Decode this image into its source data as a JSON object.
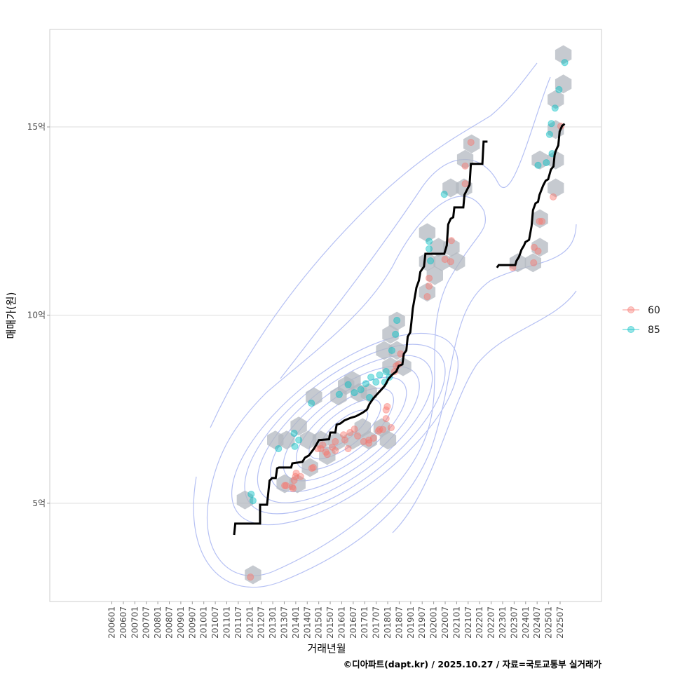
{
  "chart_data": {
    "type": "scatter",
    "xlabel": "거래년월",
    "ylabel": "매매가(원)",
    "caption": "©디아파트(dapt.kr) / 2025.10.27 / 자료=국토교통부 실거래가",
    "xlim": [
      2003.3,
      2027.3
    ],
    "ylim": [
      2.39,
      17.59
    ],
    "y_ticks": [
      {
        "value": 5,
        "label": "5억"
      },
      {
        "value": 10,
        "label": "10억"
      },
      {
        "value": 15,
        "label": "15억"
      }
    ],
    "x_ticks": [
      "200601",
      "200607",
      "200701",
      "200707",
      "200801",
      "200807",
      "200901",
      "200907",
      "201001",
      "201007",
      "201101",
      "201107",
      "201201",
      "201207",
      "201301",
      "201307",
      "201401",
      "201407",
      "201501",
      "201507",
      "201601",
      "201607",
      "201701",
      "201707",
      "201801",
      "201807",
      "201901",
      "201907",
      "202001",
      "202007",
      "202101",
      "202107",
      "202201",
      "202207",
      "202301",
      "202307",
      "202401",
      "202407",
      "202501",
      "202507"
    ],
    "grid": "horizontal major",
    "legend": {
      "placement": "right",
      "entries": [
        {
          "label": "60",
          "color": "#F8766D"
        },
        {
          "label": "85",
          "color": "#00BFC4"
        }
      ]
    },
    "colors": {
      "s60": "#F8766D",
      "s85": "#00BFC4",
      "hex": "#b3b8c0",
      "contour": "#9aa8f0",
      "median": "#000000"
    },
    "median_line": [
      [
        [
          2011.32,
          4.16
        ],
        [
          2011.37,
          4.46
        ],
        [
          2012.45,
          4.46
        ],
        [
          2012.45,
          4.96
        ],
        [
          2012.75,
          4.96
        ],
        [
          2012.8,
          5.24
        ],
        [
          2012.86,
          5.6
        ],
        [
          2012.97,
          5.67
        ],
        [
          2013.13,
          5.67
        ],
        [
          2013.19,
          5.93
        ],
        [
          2013.27,
          5.95
        ],
        [
          2013.8,
          5.95
        ],
        [
          2013.85,
          6.06
        ],
        [
          2014.29,
          6.1
        ],
        [
          2014.4,
          6.21
        ],
        [
          2014.57,
          6.27
        ],
        [
          2014.68,
          6.36
        ],
        [
          2014.79,
          6.45
        ],
        [
          2014.9,
          6.56
        ],
        [
          2015.01,
          6.68
        ],
        [
          2015.45,
          6.7
        ],
        [
          2015.5,
          6.88
        ],
        [
          2015.72,
          6.88
        ],
        [
          2015.78,
          7.09
        ],
        [
          2015.94,
          7.12
        ],
        [
          2016.11,
          7.2
        ],
        [
          2016.39,
          7.27
        ],
        [
          2016.61,
          7.31
        ],
        [
          2016.83,
          7.38
        ],
        [
          2016.94,
          7.42
        ],
        [
          2017.1,
          7.49
        ],
        [
          2017.21,
          7.64
        ],
        [
          2017.38,
          7.79
        ],
        [
          2017.54,
          7.9
        ],
        [
          2017.71,
          8.01
        ],
        [
          2017.87,
          8.12
        ],
        [
          2018.04,
          8.31
        ],
        [
          2018.2,
          8.42
        ],
        [
          2018.37,
          8.5
        ],
        [
          2018.48,
          8.65
        ],
        [
          2018.64,
          8.69
        ],
        [
          2018.7,
          8.97
        ],
        [
          2018.81,
          9.06
        ],
        [
          2018.87,
          9.43
        ],
        [
          2018.98,
          9.54
        ],
        [
          2019.03,
          9.8
        ],
        [
          2019.09,
          10.17
        ],
        [
          2019.2,
          10.55
        ],
        [
          2019.25,
          10.73
        ],
        [
          2019.36,
          10.92
        ],
        [
          2019.42,
          11.15
        ],
        [
          2019.58,
          11.29
        ],
        [
          2019.64,
          11.63
        ],
        [
          2020.46,
          11.63
        ],
        [
          2020.57,
          11.85
        ],
        [
          2020.63,
          12.41
        ],
        [
          2020.74,
          12.56
        ],
        [
          2020.85,
          12.6
        ],
        [
          2020.9,
          12.86
        ],
        [
          2021.29,
          12.86
        ],
        [
          2021.34,
          13.2
        ],
        [
          2021.56,
          13.46
        ],
        [
          2021.62,
          14.02
        ],
        [
          2022.12,
          14.02
        ],
        [
          2022.17,
          14.61
        ],
        [
          2022.34,
          14.61
        ]
      ],
      [
        [
          2022.75,
          11.26
        ],
        [
          2022.83,
          11.33
        ],
        [
          2023.55,
          11.33
        ],
        [
          2023.6,
          11.44
        ],
        [
          2023.71,
          11.55
        ],
        [
          2023.82,
          11.74
        ],
        [
          2023.93,
          11.85
        ],
        [
          2023.99,
          11.94
        ],
        [
          2024.15,
          12.0
        ],
        [
          2024.26,
          12.37
        ],
        [
          2024.32,
          12.79
        ],
        [
          2024.43,
          12.97
        ],
        [
          2024.54,
          13.01
        ],
        [
          2024.6,
          13.19
        ],
        [
          2024.76,
          13.44
        ],
        [
          2024.87,
          13.57
        ],
        [
          2024.98,
          13.61
        ],
        [
          2025.1,
          13.87
        ],
        [
          2025.21,
          13.95
        ],
        [
          2025.26,
          14.25
        ],
        [
          2025.31,
          14.36
        ],
        [
          2025.42,
          14.51
        ],
        [
          2025.48,
          14.88
        ],
        [
          2025.59,
          15.03
        ],
        [
          2025.7,
          15.08
        ]
      ]
    ],
    "hex_bins": [
      [
        2012.14,
        3.1
      ],
      [
        2011.79,
        5.09
      ],
      [
        2013.52,
        5.52
      ],
      [
        2014.07,
        5.52
      ],
      [
        2014.62,
        5.95
      ],
      [
        2013.11,
        6.68
      ],
      [
        2013.6,
        6.68
      ],
      [
        2014.13,
        7.05
      ],
      [
        2014.54,
        6.68
      ],
      [
        2015.09,
        6.68
      ],
      [
        2015.37,
        6.27
      ],
      [
        2014.79,
        7.83
      ],
      [
        2015.78,
        6.64
      ],
      [
        2016.47,
        6.68
      ],
      [
        2016.91,
        7.01
      ],
      [
        2017.18,
        6.68
      ],
      [
        2017.74,
        7.01
      ],
      [
        2018.01,
        6.68
      ],
      [
        2016.19,
        8.13
      ],
      [
        2016.74,
        7.94
      ],
      [
        2015.86,
        7.85
      ],
      [
        2017.18,
        7.94
      ],
      [
        2016.47,
        8.26
      ],
      [
        2017.85,
        9.06
      ],
      [
        2018.4,
        9.06
      ],
      [
        2018.12,
        8.63
      ],
      [
        2018.67,
        8.63
      ],
      [
        2018.12,
        9.49
      ],
      [
        2018.4,
        9.84
      ],
      [
        2019.72,
        12.19
      ],
      [
        2020.21,
        11.8
      ],
      [
        2020.77,
        11.8
      ],
      [
        2019.72,
        11.42
      ],
      [
        2020.35,
        11.42
      ],
      [
        2021.01,
        11.42
      ],
      [
        2020.05,
        11.05
      ],
      [
        2019.72,
        10.61
      ],
      [
        2020.74,
        13.38
      ],
      [
        2021.32,
        13.38
      ],
      [
        2021.37,
        14.14
      ],
      [
        2021.65,
        14.55
      ],
      [
        2023.66,
        11.39
      ],
      [
        2024.32,
        11.39
      ],
      [
        2024.62,
        11.8
      ],
      [
        2024.62,
        12.56
      ],
      [
        2025.31,
        13.38
      ],
      [
        2024.62,
        14.12
      ],
      [
        2025.31,
        14.12
      ],
      [
        2025.31,
        14.93
      ],
      [
        2025.31,
        15.73
      ],
      [
        2025.64,
        16.14
      ],
      [
        2025.64,
        16.92
      ]
    ],
    "series": [
      {
        "name": "60",
        "points": [
          [
            2012.03,
            3.04
          ],
          [
            2013.58,
            5.47
          ],
          [
            2013.85,
            5.43
          ],
          [
            2013.93,
            5.61
          ],
          [
            2014.02,
            5.8
          ],
          [
            2014.21,
            5.71
          ],
          [
            2014.76,
            5.95
          ],
          [
            2014.95,
            6.45
          ],
          [
            2015.17,
            6.55
          ],
          [
            2015.31,
            6.36
          ],
          [
            2015.59,
            6.49
          ],
          [
            2015.72,
            6.64
          ],
          [
            2016.08,
            6.82
          ],
          [
            2016.28,
            6.45
          ],
          [
            2016.55,
            6.97
          ],
          [
            2016.69,
            6.79
          ],
          [
            2016.96,
            6.64
          ],
          [
            2017.18,
            6.68
          ],
          [
            2017.38,
            6.73
          ],
          [
            2017.6,
            6.92
          ],
          [
            2017.79,
            6.96
          ],
          [
            2017.93,
            7.48
          ],
          [
            2017.93,
            7.25
          ],
          [
            2018.15,
            7.01
          ],
          [
            2017.98,
            7.57
          ],
          [
            2016.36,
            6.88
          ],
          [
            2016.14,
            6.68
          ],
          [
            2015.72,
            6.4
          ],
          [
            2014.7,
            5.93
          ],
          [
            2013.99,
            5.71
          ],
          [
            2013.52,
            5.47
          ],
          [
            2013.88,
            5.39
          ],
          [
            2017.18,
            6.6
          ],
          [
            2017.65,
            6.96
          ],
          [
            2015.09,
            6.45
          ],
          [
            2015.37,
            6.3
          ],
          [
            2018.37,
            8.65
          ],
          [
            2018.48,
            8.69
          ],
          [
            2018.56,
            8.97
          ],
          [
            2018.3,
            8.5
          ],
          [
            2019.8,
            10.98
          ],
          [
            2019.8,
            10.77
          ],
          [
            2019.72,
            10.49
          ],
          [
            2020.49,
            11.48
          ],
          [
            2020.74,
            11.42
          ],
          [
            2020.77,
            11.98
          ],
          [
            2021.37,
            13.49
          ],
          [
            2021.37,
            13.96
          ],
          [
            2021.62,
            14.59
          ],
          [
            2023.44,
            11.26
          ],
          [
            2024.35,
            11.39
          ],
          [
            2024.37,
            11.8
          ],
          [
            2024.54,
            11.7
          ],
          [
            2024.6,
            12.49
          ],
          [
            2024.71,
            12.49
          ],
          [
            2025.2,
            13.14
          ],
          [
            2025.53,
            15.02
          ]
        ]
      },
      {
        "name": "85",
        "points": [
          [
            2012.06,
            5.24
          ],
          [
            2012.14,
            5.07
          ],
          [
            2013.25,
            6.45
          ],
          [
            2013.96,
            6.51
          ],
          [
            2013.93,
            6.86
          ],
          [
            2014.13,
            6.68
          ],
          [
            2014.68,
            7.66
          ],
          [
            2015.89,
            7.89
          ],
          [
            2016.28,
            8.15
          ],
          [
            2016.55,
            7.94
          ],
          [
            2016.83,
            8.02
          ],
          [
            2017.05,
            8.18
          ],
          [
            2017.21,
            7.81
          ],
          [
            2017.27,
            8.35
          ],
          [
            2017.49,
            8.22
          ],
          [
            2017.65,
            8.41
          ],
          [
            2017.87,
            8.22
          ],
          [
            2017.93,
            8.5
          ],
          [
            2018.07,
            8.35
          ],
          [
            2018.18,
            9.06
          ],
          [
            2018.34,
            9.49
          ],
          [
            2018.4,
            9.86
          ],
          [
            2019.8,
            11.96
          ],
          [
            2019.8,
            11.76
          ],
          [
            2019.86,
            11.44
          ],
          [
            2020.46,
            13.21
          ],
          [
            2024.54,
            13.98
          ],
          [
            2024.9,
            14.05
          ],
          [
            2025.15,
            14.29
          ],
          [
            2025.04,
            14.8
          ],
          [
            2025.12,
            15.09
          ],
          [
            2025.28,
            15.5
          ],
          [
            2025.45,
            15.99
          ],
          [
            2025.7,
            16.71
          ]
        ]
      }
    ]
  }
}
